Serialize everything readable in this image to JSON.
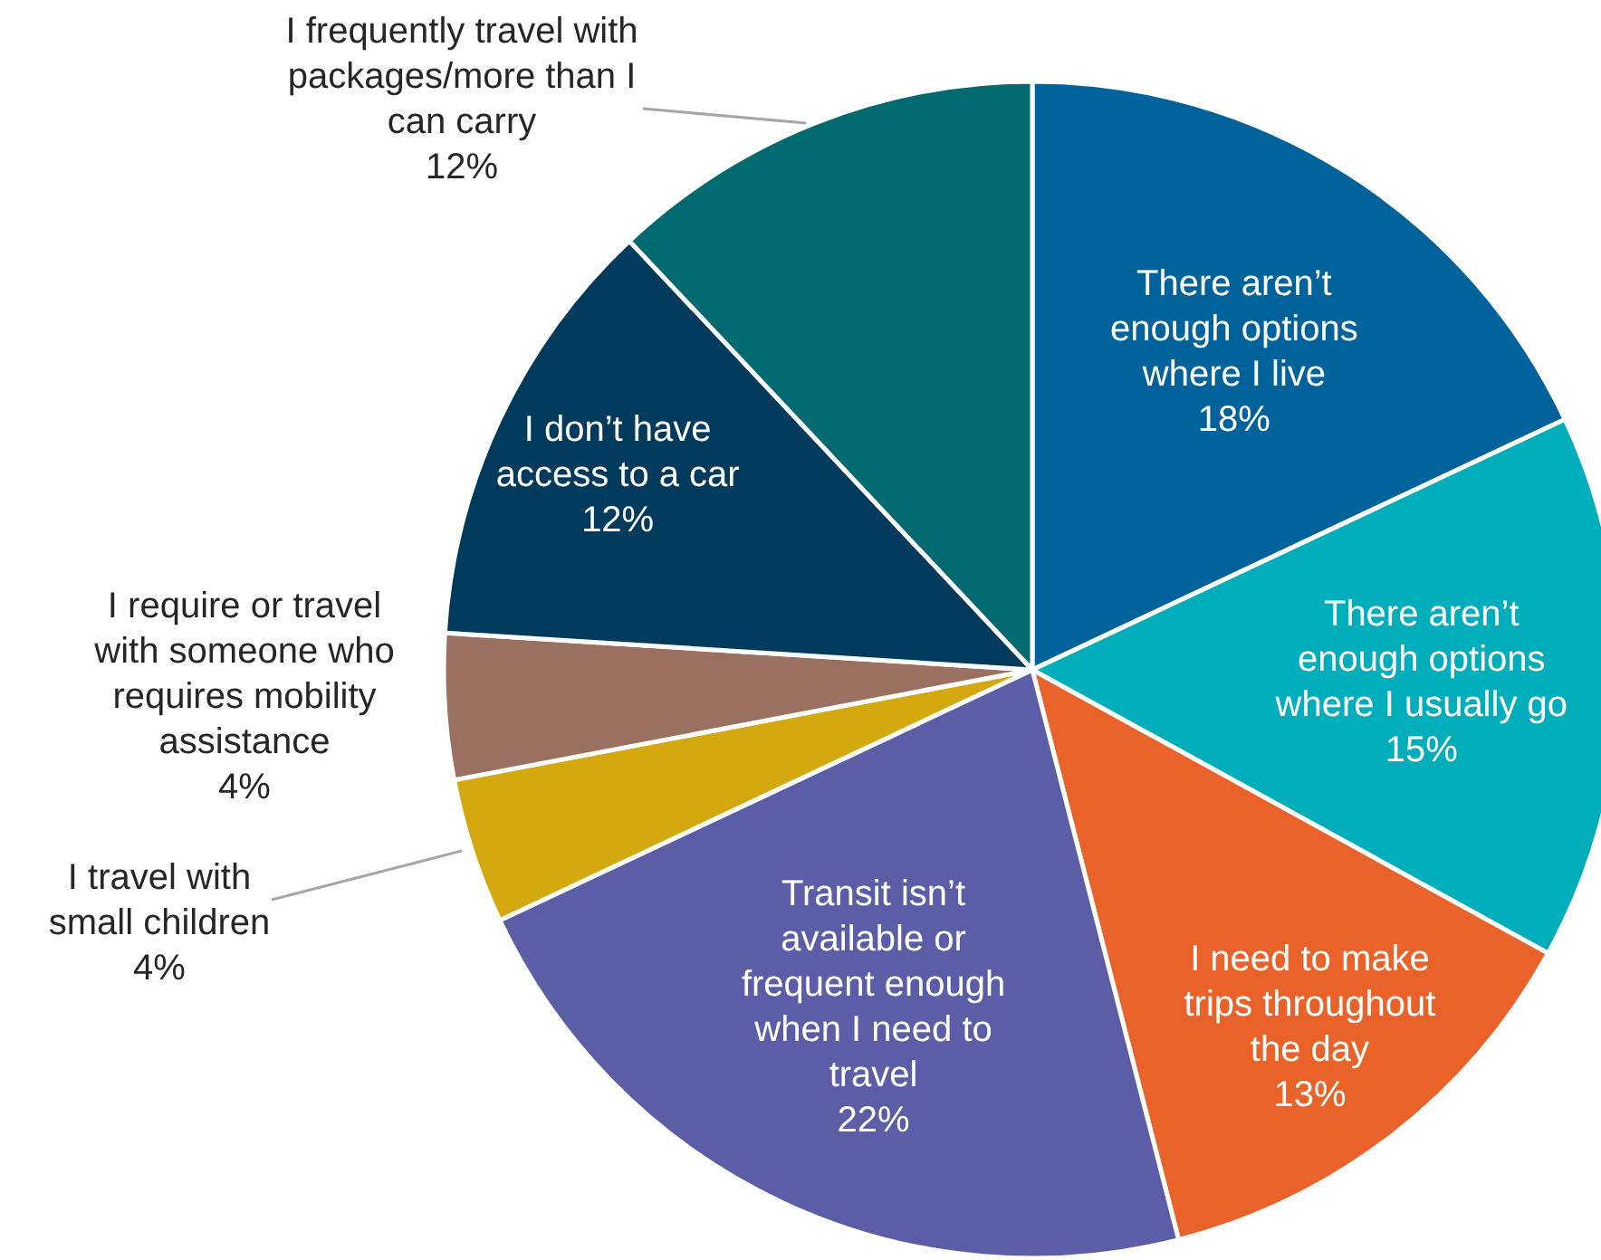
{
  "chart_data": {
    "type": "pie",
    "categories": [
      "There aren’t enough options where I live",
      "There aren’t enough options where I usually go",
      "I need to make trips throughout the day",
      "Transit isn’t available or frequent enough when I need to travel",
      "I travel with small children",
      "I require or travel with someone who requires mobility assistance",
      "I don’t have access to a car",
      "I frequently travel with packages/more than I can carry"
    ],
    "values": [
      18,
      15,
      13,
      22,
      4,
      4,
      12,
      12
    ],
    "colors": [
      "#00629b",
      "#00adbb",
      "#e8622a",
      "#5b5ea6",
      "#d4a90f",
      "#9a7060",
      "#003a5c",
      "#006a70"
    ],
    "value_labels": [
      "18%",
      "15%",
      "13%",
      "22%",
      "4%",
      "4%",
      "12%",
      "12%"
    ]
  }
}
